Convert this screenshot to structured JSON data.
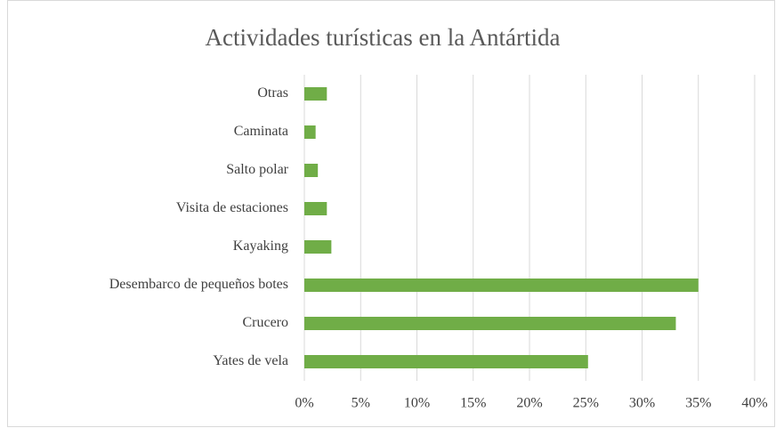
{
  "chart_data": {
    "type": "bar",
    "orientation": "horizontal",
    "title": "Actividades turísticas en la Antártida",
    "categories": [
      "Otras",
      "Caminata",
      "Salto polar",
      "Visita de estaciones",
      "Kayaking",
      "Desembarco de pequeños botes",
      "Crucero",
      "Yates de vela"
    ],
    "values": [
      2,
      1,
      1.2,
      2,
      2.4,
      35,
      33,
      25.2
    ],
    "color": "#70ad47",
    "xlim": [
      0,
      40
    ],
    "xticks": [
      {
        "value": 0,
        "label": "0%"
      },
      {
        "value": 5,
        "label": "5%"
      },
      {
        "value": 10,
        "label": "10%"
      },
      {
        "value": 15,
        "label": "15%"
      },
      {
        "value": 20,
        "label": "20%"
      },
      {
        "value": 25,
        "label": "25%"
      },
      {
        "value": 30,
        "label": "30%"
      },
      {
        "value": 35,
        "label": "35%"
      },
      {
        "value": 40,
        "label": "40%"
      }
    ],
    "grid": true
  }
}
